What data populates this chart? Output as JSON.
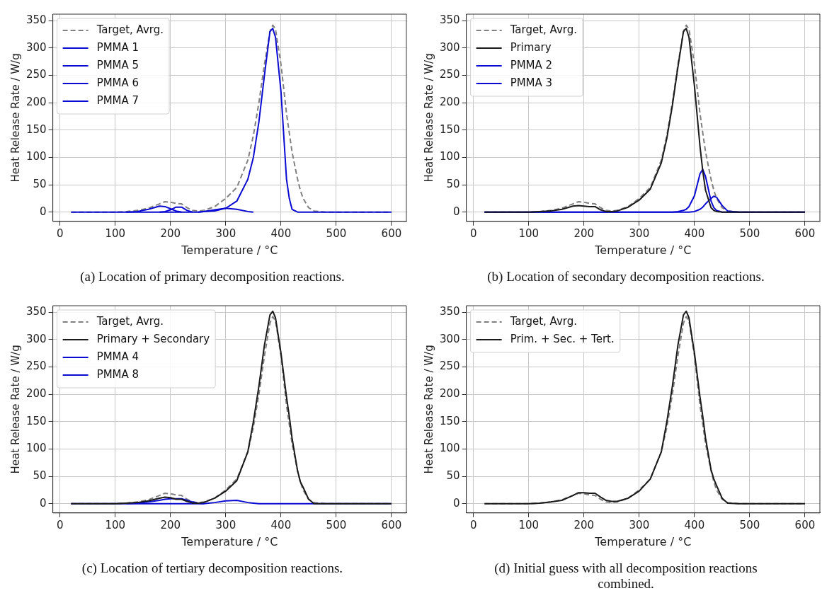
{
  "chart_data": [
    {
      "type": "line",
      "xlabel": "Temperature / °C",
      "ylabel": "Heat Release Rate / W/g",
      "annotations": [
        "(a) Location of primary decomposition reactions."
      ],
      "xlim": [
        -13,
        627
      ],
      "ylim": [
        -17,
        362
      ],
      "xticks": [
        0,
        100,
        200,
        300,
        400,
        500,
        600
      ],
      "yticks": [
        0,
        50,
        100,
        150,
        200,
        250,
        300,
        350
      ],
      "grid": true,
      "legend": "top left",
      "marker": "none",
      "x": [
        20,
        100,
        120,
        140,
        160,
        180,
        190,
        200,
        210,
        220,
        230,
        240,
        250,
        260,
        280,
        300,
        320,
        340,
        350,
        360,
        370,
        380,
        385,
        390,
        400,
        410,
        415,
        420,
        430,
        435,
        440,
        450,
        460,
        480,
        600
      ],
      "series": [
        {
          "name": "Target, Avrg.",
          "color": "#808080",
          "line_style": "dashed",
          "values": [
            0,
            0,
            1,
            3,
            7,
            15,
            19,
            18,
            16,
            15,
            8,
            3,
            2,
            3,
            10,
            25,
            45,
            95,
            140,
            200,
            270,
            330,
            342,
            335,
            270,
            180,
            145,
            110,
            60,
            40,
            25,
            8,
            2,
            0,
            0
          ]
        },
        {
          "name": "PMMA 1",
          "color": "#0a0ad2",
          "values": [
            0,
            0,
            0,
            0,
            0,
            0,
            0,
            0,
            0,
            0,
            0,
            0,
            0,
            1,
            2,
            7,
            20,
            60,
            100,
            165,
            250,
            330,
            336,
            320,
            220,
            60,
            25,
            5,
            0,
            0,
            0,
            0,
            0,
            0,
            0
          ]
        },
        {
          "name": "PMMA 5",
          "color": "#0a0ad2",
          "values": [
            null,
            null,
            0,
            1,
            5,
            11,
            10,
            6,
            2,
            0,
            null,
            null,
            null,
            null,
            null,
            null,
            null,
            null,
            null,
            null,
            null,
            null,
            null,
            null,
            null,
            null,
            null,
            null,
            null,
            null,
            null,
            null,
            null,
            null,
            null
          ]
        },
        {
          "name": "PMMA 6",
          "color": "#0a0ad2",
          "values": [
            null,
            null,
            null,
            null,
            null,
            0,
            1,
            4,
            9,
            9,
            3,
            0,
            null,
            null,
            null,
            null,
            null,
            null,
            null,
            null,
            null,
            null,
            null,
            null,
            null,
            null,
            null,
            null,
            null,
            null,
            null,
            null,
            null,
            null,
            null
          ]
        },
        {
          "name": "PMMA 7",
          "color": "#0a0ad2",
          "values": [
            null,
            null,
            null,
            null,
            null,
            null,
            null,
            null,
            null,
            null,
            null,
            null,
            0,
            1,
            4,
            7,
            5,
            1,
            0,
            null,
            null,
            null,
            null,
            null,
            null,
            null,
            null,
            null,
            null,
            null,
            null,
            null,
            null,
            null,
            null
          ]
        }
      ]
    },
    {
      "type": "line",
      "xlabel": "Temperature / °C",
      "ylabel": "Heat Release Rate / W/g",
      "annotations": [
        "(b) Location of secondary decomposition reactions."
      ],
      "xlim": [
        -13,
        627
      ],
      "ylim": [
        -17,
        362
      ],
      "xticks": [
        0,
        100,
        200,
        300,
        400,
        500,
        600
      ],
      "yticks": [
        0,
        50,
        100,
        150,
        200,
        250,
        300,
        350
      ],
      "grid": true,
      "legend": "top left",
      "marker": "none",
      "x": [
        20,
        100,
        120,
        140,
        160,
        180,
        190,
        200,
        210,
        220,
        230,
        240,
        250,
        260,
        280,
        300,
        320,
        340,
        350,
        360,
        370,
        380,
        385,
        390,
        400,
        410,
        415,
        420,
        430,
        435,
        440,
        450,
        460,
        480,
        600
      ],
      "series": [
        {
          "name": "Target, Avrg.",
          "color": "#808080",
          "line_style": "dashed",
          "values": [
            0,
            0,
            1,
            3,
            7,
            15,
            19,
            18,
            16,
            15,
            8,
            3,
            2,
            3,
            10,
            25,
            45,
            95,
            140,
            200,
            270,
            330,
            342,
            335,
            270,
            180,
            145,
            110,
            60,
            40,
            25,
            8,
            2,
            0,
            0
          ]
        },
        {
          "name": "Primary",
          "color": "#1a1a1a",
          "values": [
            0,
            0,
            1,
            2,
            5,
            11,
            12,
            11,
            10,
            10,
            4,
            1,
            1,
            2,
            9,
            22,
            42,
            90,
            135,
            195,
            265,
            330,
            336,
            320,
            230,
            120,
            75,
            40,
            8,
            3,
            1,
            0,
            0,
            0,
            0
          ]
        },
        {
          "name": "PMMA 2",
          "color": "#0a0ad2",
          "values": [
            0,
            0,
            0,
            0,
            0,
            0,
            0,
            0,
            0,
            0,
            0,
            0,
            0,
            0,
            0,
            0,
            0,
            0,
            0,
            0,
            1,
            3,
            5,
            10,
            30,
            70,
            78,
            65,
            20,
            8,
            3,
            0,
            0,
            0,
            0
          ]
        },
        {
          "name": "PMMA 3",
          "color": "#0a0ad2",
          "values": [
            0,
            0,
            0,
            0,
            0,
            0,
            0,
            0,
            0,
            0,
            0,
            0,
            0,
            0,
            0,
            0,
            0,
            0,
            0,
            0,
            0,
            0,
            0,
            0,
            1,
            5,
            9,
            15,
            25,
            29,
            27,
            12,
            2,
            0,
            0
          ]
        }
      ]
    },
    {
      "type": "line",
      "xlabel": "Temperature / °C",
      "ylabel": "Heat Release Rate / W/g",
      "annotations": [
        "(c) Location of tertiary decomposition reactions."
      ],
      "xlim": [
        -13,
        627
      ],
      "ylim": [
        -17,
        362
      ],
      "xticks": [
        0,
        100,
        200,
        300,
        400,
        500,
        600
      ],
      "yticks": [
        0,
        50,
        100,
        150,
        200,
        250,
        300,
        350
      ],
      "grid": true,
      "legend": "top left",
      "marker": "none",
      "x": [
        20,
        100,
        120,
        140,
        160,
        180,
        190,
        200,
        210,
        220,
        230,
        240,
        250,
        260,
        280,
        300,
        320,
        340,
        350,
        360,
        370,
        380,
        385,
        390,
        400,
        410,
        415,
        420,
        430,
        435,
        440,
        450,
        460,
        480,
        600
      ],
      "series": [
        {
          "name": "Target, Avrg.",
          "color": "#808080",
          "line_style": "dashed",
          "values": [
            0,
            0,
            1,
            3,
            7,
            15,
            19,
            18,
            16,
            15,
            8,
            3,
            2,
            3,
            10,
            25,
            45,
            95,
            140,
            200,
            270,
            330,
            342,
            335,
            270,
            180,
            145,
            110,
            60,
            40,
            25,
            8,
            2,
            0,
            0
          ]
        },
        {
          "name": "Primary + Secondary",
          "color": "#1a1a1a",
          "values": [
            0,
            0,
            1,
            2,
            5,
            10,
            12,
            11,
            8,
            8,
            4,
            1,
            1,
            2,
            10,
            23,
            42,
            95,
            150,
            215,
            290,
            345,
            352,
            340,
            275,
            195,
            160,
            120,
            60,
            40,
            30,
            8,
            0,
            0,
            0
          ]
        },
        {
          "name": "PMMA 4",
          "color": "#0a0ad2",
          "values": [
            null,
            null,
            0,
            1,
            3,
            6,
            8,
            9,
            9,
            9,
            6,
            3,
            1,
            0,
            null,
            null,
            null,
            null,
            null,
            null,
            null,
            null,
            null,
            null,
            null,
            null,
            null,
            null,
            null,
            null,
            null,
            null,
            null,
            null,
            null
          ]
        },
        {
          "name": "PMMA 8",
          "color": "#0a0ad2",
          "values": [
            0,
            0,
            0,
            0,
            0,
            0,
            0,
            0,
            0,
            0,
            0,
            0,
            0,
            0,
            2,
            5,
            6,
            2,
            1,
            0,
            0,
            0,
            0,
            0,
            0,
            0,
            0,
            0,
            0,
            0,
            0,
            0,
            0,
            0,
            0
          ]
        }
      ]
    },
    {
      "type": "line",
      "xlabel": "Temperature / °C",
      "ylabel": "Heat Release Rate / W/g",
      "annotations": [
        "(d) Initial guess with all decomposition reactions combined."
      ],
      "xlim": [
        -13,
        627
      ],
      "ylim": [
        -17,
        362
      ],
      "xticks": [
        0,
        100,
        200,
        300,
        400,
        500,
        600
      ],
      "yticks": [
        0,
        50,
        100,
        150,
        200,
        250,
        300,
        350
      ],
      "grid": true,
      "legend": "top left",
      "marker": "none",
      "x": [
        20,
        100,
        120,
        140,
        160,
        180,
        190,
        200,
        210,
        220,
        230,
        240,
        250,
        260,
        280,
        300,
        320,
        340,
        350,
        360,
        370,
        380,
        385,
        390,
        400,
        410,
        415,
        420,
        430,
        435,
        440,
        450,
        460,
        480,
        600
      ],
      "series": [
        {
          "name": "Target, Avrg.",
          "color": "#808080",
          "line_style": "dashed",
          "values": [
            0,
            0,
            1,
            3,
            7,
            15,
            19,
            18,
            16,
            15,
            8,
            3,
            2,
            3,
            10,
            25,
            45,
            95,
            140,
            200,
            270,
            330,
            342,
            335,
            270,
            180,
            145,
            110,
            60,
            40,
            25,
            8,
            2,
            0,
            0
          ]
        },
        {
          "name": "Prim. + Sec. + Tert.",
          "color": "#1a1a1a",
          "values": [
            0,
            0,
            1,
            3,
            6,
            15,
            20,
            20,
            19,
            19,
            12,
            6,
            4,
            4,
            10,
            23,
            45,
            95,
            150,
            215,
            290,
            345,
            352,
            340,
            275,
            195,
            160,
            120,
            62,
            45,
            33,
            10,
            1,
            0,
            0
          ]
        }
      ]
    }
  ]
}
